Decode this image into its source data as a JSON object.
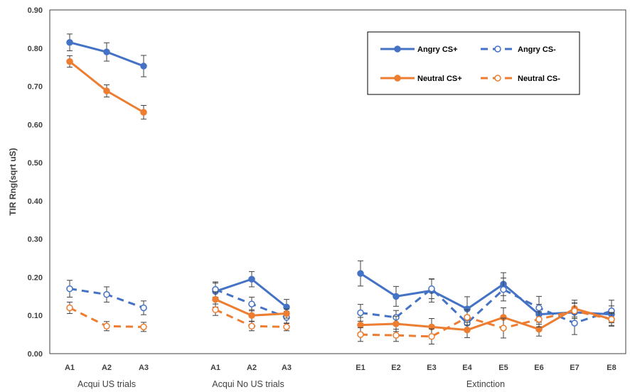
{
  "chart_data": {
    "type": "line",
    "ylabel": "TIR Rng(sqrt uS)",
    "ylim": [
      0,
      0.9
    ],
    "yticks": [
      "0.00",
      "0.10",
      "0.20",
      "0.30",
      "0.40",
      "0.50",
      "0.60",
      "0.70",
      "0.80",
      "0.90"
    ],
    "legend_position": "top-right",
    "groups": [
      {
        "label": "Acqui US trials",
        "categories": [
          "A1",
          "A2",
          "A3"
        ],
        "series": {
          "angry_cs_plus": {
            "values": [
              0.815,
              0.79,
              0.753
            ],
            "errors": [
              0.022,
              0.024,
              0.028
            ]
          },
          "angry_cs_minus": {
            "values": [
              0.17,
              0.155,
              0.12
            ],
            "errors": [
              0.022,
              0.02,
              0.018
            ]
          },
          "neutral_cs_plus": {
            "values": [
              0.765,
              0.688,
              0.632
            ],
            "errors": [
              0.015,
              0.016,
              0.018
            ]
          },
          "neutral_cs_minus": {
            "values": [
              0.12,
              0.072,
              0.07
            ],
            "errors": [
              0.015,
              0.012,
              0.012
            ]
          }
        }
      },
      {
        "label": "Acqui No US trials",
        "categories": [
          "A1",
          "A2",
          "A3"
        ],
        "series": {
          "angry_cs_plus": {
            "values": [
              0.163,
              0.195,
              0.122
            ],
            "errors": [
              0.022,
              0.02,
              0.02
            ]
          },
          "angry_cs_minus": {
            "values": [
              0.168,
              0.13,
              0.095
            ],
            "errors": [
              0.02,
              0.018,
              0.016
            ]
          },
          "neutral_cs_plus": {
            "values": [
              0.142,
              0.1,
              0.105
            ],
            "errors": [
              0.02,
              0.015,
              0.012
            ]
          },
          "neutral_cs_minus": {
            "values": [
              0.115,
              0.072,
              0.07
            ],
            "errors": [
              0.015,
              0.012,
              0.01
            ]
          }
        }
      },
      {
        "label": "Extinction",
        "categories": [
          "E1",
          "E2",
          "E3",
          "E4",
          "E5",
          "E6",
          "E7",
          "E8"
        ],
        "series": {
          "angry_cs_plus": {
            "values": [
              0.21,
              0.15,
              0.165,
              0.117,
              0.182,
              0.103,
              0.108,
              0.103
            ],
            "errors": [
              0.033,
              0.026,
              0.03,
              0.032,
              0.03,
              0.026,
              0.025,
              0.022
            ]
          },
          "angry_cs_minus": {
            "values": [
              0.107,
              0.095,
              0.17,
              0.08,
              0.168,
              0.12,
              0.08,
              0.112
            ],
            "errors": [
              0.022,
              0.018,
              0.026,
              0.02,
              0.03,
              0.03,
              0.03,
              0.028
            ]
          },
          "neutral_cs_plus": {
            "values": [
              0.075,
              0.078,
              0.07,
              0.062,
              0.095,
              0.064,
              0.118,
              0.09
            ],
            "errors": [
              0.02,
              0.02,
              0.022,
              0.02,
              0.025,
              0.018,
              0.022,
              0.018
            ]
          },
          "neutral_cs_minus": {
            "values": [
              0.05,
              0.048,
              0.045,
              0.095,
              0.067,
              0.09,
              0.112,
              0.09
            ],
            "errors": [
              0.018,
              0.016,
              0.02,
              0.02,
              0.026,
              0.02,
              0.02,
              0.016
            ]
          }
        }
      }
    ],
    "legend": [
      {
        "key": "angry_cs_plus",
        "label": "Angry CS+",
        "color": "#4472C4",
        "dashed": false,
        "filled": true
      },
      {
        "key": "angry_cs_minus",
        "label": "Angry CS-",
        "color": "#4472C4",
        "dashed": true,
        "filled": false
      },
      {
        "key": "neutral_cs_plus",
        "label": "Neutral CS+",
        "color": "#ED7D31",
        "dashed": false,
        "filled": true
      },
      {
        "key": "neutral_cs_minus",
        "label": "Neutral CS-",
        "color": "#ED7D31",
        "dashed": true,
        "filled": false
      }
    ],
    "colors": {
      "axis": "#404040",
      "error_bar": "#404040"
    }
  }
}
